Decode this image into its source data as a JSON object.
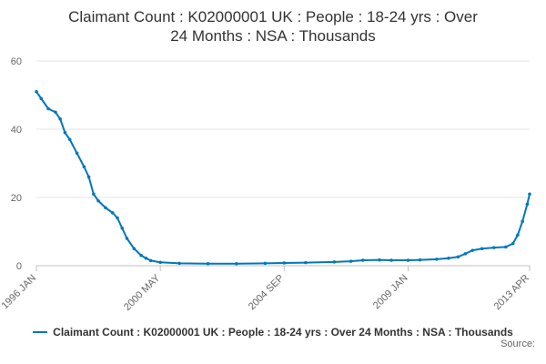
{
  "chart_data": {
    "type": "line",
    "title_lines": [
      "Claimant Count : K02000001 UK : People : 18-24 yrs : Over",
      "24 Months : NSA : Thousands"
    ],
    "x_tick_labels": [
      "1996 JAN",
      "2000 MAY",
      "2004 SEP",
      "2009 JAN",
      "2013 APR"
    ],
    "x_range": [
      "1996-01",
      "2013-04"
    ],
    "ylim": [
      0,
      60
    ],
    "y_ticks": [
      0,
      20,
      40,
      60
    ],
    "grid": true,
    "legend_position": "bottom",
    "series": [
      {
        "name": "Claimant Count : K02000001 UK : People : 18-24 yrs : Over 24 Months : NSA : Thousands",
        "color": "#0077bb",
        "points": [
          [
            "1996-01",
            51
          ],
          [
            "1996-03",
            49
          ],
          [
            "1996-06",
            46
          ],
          [
            "1996-09",
            45
          ],
          [
            "1996-11",
            43
          ],
          [
            "1997-01",
            39
          ],
          [
            "1997-03",
            37
          ],
          [
            "1997-06",
            33
          ],
          [
            "1997-09",
            29
          ],
          [
            "1997-11",
            26
          ],
          [
            "1998-01",
            21
          ],
          [
            "1998-03",
            19
          ],
          [
            "1998-06",
            17
          ],
          [
            "1998-09",
            15.5
          ],
          [
            "1998-11",
            14
          ],
          [
            "1999-01",
            11
          ],
          [
            "1999-03",
            8
          ],
          [
            "1999-06",
            5
          ],
          [
            "1999-09",
            3
          ],
          [
            "1999-11",
            2.2
          ],
          [
            "2000-01",
            1.5
          ],
          [
            "2000-05",
            1.0
          ],
          [
            "2001-01",
            0.7
          ],
          [
            "2002-01",
            0.6
          ],
          [
            "2003-01",
            0.6
          ],
          [
            "2004-01",
            0.7
          ],
          [
            "2004-09",
            0.8
          ],
          [
            "2005-06",
            0.9
          ],
          [
            "2006-06",
            1.1
          ],
          [
            "2007-01",
            1.3
          ],
          [
            "2007-06",
            1.6
          ],
          [
            "2008-01",
            1.7
          ],
          [
            "2008-06",
            1.6
          ],
          [
            "2009-01",
            1.6
          ],
          [
            "2009-06",
            1.7
          ],
          [
            "2010-01",
            1.9
          ],
          [
            "2010-06",
            2.2
          ],
          [
            "2010-10",
            2.6
          ],
          [
            "2011-01",
            3.5
          ],
          [
            "2011-04",
            4.5
          ],
          [
            "2011-08",
            5.0
          ],
          [
            "2012-01",
            5.3
          ],
          [
            "2012-06",
            5.5
          ],
          [
            "2012-09",
            6.5
          ],
          [
            "2012-11",
            9
          ],
          [
            "2013-01",
            13
          ],
          [
            "2013-03",
            18
          ],
          [
            "2013-04",
            21
          ]
        ]
      }
    ],
    "legend_label": "Claimant Count : K02000001 UK : People : 18-24 yrs : Over 24 Months : NSA : Thousands",
    "credits": "Source:"
  }
}
